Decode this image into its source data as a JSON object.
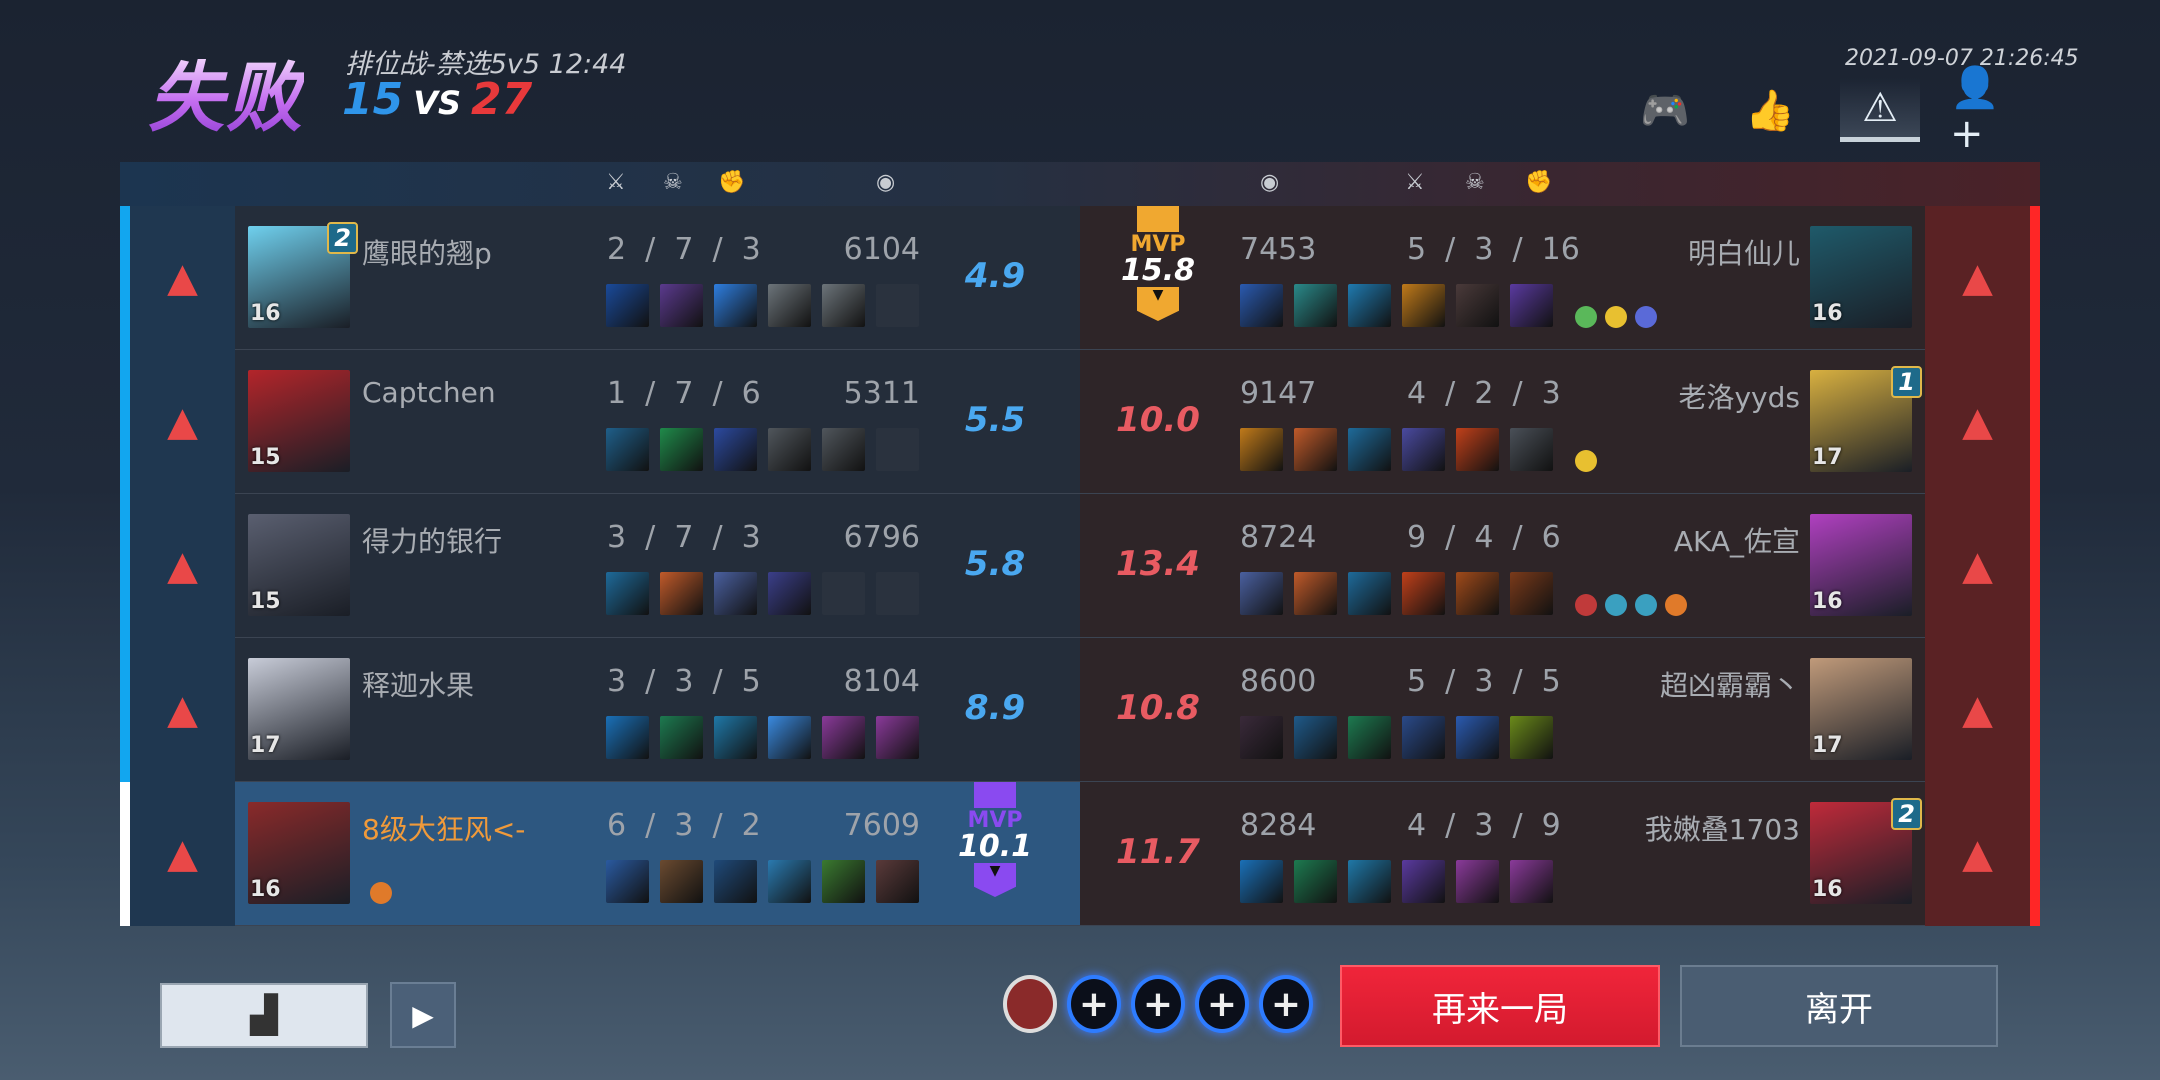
{
  "header": {
    "result": "失败",
    "mode": "排位战-禁选5v5",
    "duration": "12:44",
    "score_blue": "15",
    "vs": "VS",
    "score_red": "27",
    "datetime": "2021-09-07 21:26:45"
  },
  "tabs": [
    {
      "icon": "gamepad-icon",
      "glyph": "🎮"
    },
    {
      "icon": "thumbs-up-icon",
      "glyph": "👍"
    },
    {
      "icon": "warning-icon",
      "glyph": "⚠",
      "active": true
    },
    {
      "icon": "add-friend-icon",
      "glyph": "👤+"
    }
  ],
  "columns": {
    "kills": "⚔",
    "deaths": "☠",
    "assists": "✊",
    "gold": "◉"
  },
  "blue_team": [
    {
      "name": "鹰眼的翘p",
      "level": "16",
      "rank": "2",
      "kda": "2  /  7  /  3",
      "gold": "6104",
      "score": "4.9",
      "mvp": false,
      "avatar": "#6fd0ee",
      "items": [
        "#1a4a9a",
        "#5b3a8e",
        "#2e7ee0",
        "#6c747a",
        "#6c747a",
        ""
      ],
      "badges": []
    },
    {
      "name": "Captchen",
      "level": "15",
      "rank": "",
      "kda": "1  /  7  /  6",
      "gold": "5311",
      "score": "5.5",
      "mvp": false,
      "avatar": "#b3252a",
      "items": [
        "#1f5f8a",
        "#1f8a4a",
        "#2c4aa0",
        "#50565c",
        "#50565c",
        ""
      ],
      "badges": []
    },
    {
      "name": "得力的银行",
      "level": "15",
      "rank": "",
      "kda": "3  /  7  /  3",
      "gold": "6796",
      "score": "5.8",
      "mvp": false,
      "avatar": "#5a5f70",
      "items": [
        "#1e6a9a",
        "#c05a2a",
        "#4a60a0",
        "#3b3f8a",
        "",
        ""
      ],
      "badges": []
    },
    {
      "name": "释迦水果",
      "level": "17",
      "rank": "",
      "kda": "3  /  3  /  5",
      "gold": "8104",
      "score": "8.9",
      "mvp": false,
      "avatar": "#c8ccd8",
      "items": [
        "#1a70b8",
        "#1d7a50",
        "#1f78a8",
        "#3a8ae0",
        "#8a3a9a",
        "#8a3a9a"
      ],
      "badges": []
    },
    {
      "name": "8级大狂风<-",
      "level": "16",
      "rank": "",
      "kda": "6  /  3  /  2",
      "gold": "7609",
      "score": "10.1",
      "mvp": true,
      "mvp_label": "MVP",
      "avatar": "#8a2a2a",
      "items": [
        "#2a5aa0",
        "#6a4a30",
        "#1f4a7a",
        "#2a7ab0",
        "#3a7a30",
        "#5a3a3a"
      ],
      "badges": [
        "#e07a2a"
      ],
      "self": true
    }
  ],
  "red_team": [
    {
      "name": "明白仙儿",
      "level": "16",
      "rank": "",
      "kda": "5  /  3  /  16",
      "gold": "7453",
      "score": "15.8",
      "mvp": true,
      "mvp_label": "MVP",
      "avatar": "#1f5a6a",
      "items": [
        "#2a5ab0",
        "#2a8a8a",
        "#1f7ab0",
        "#c07a1a",
        "#4a3a3a",
        "#5a3aa0"
      ],
      "badges": [
        "#5ab85a",
        "#e8c030",
        "#5a6ad8"
      ]
    },
    {
      "name": "老洛yyds",
      "level": "17",
      "rank": "1",
      "kda": "4  /  2  /  3",
      "gold": "9147",
      "score": "10.0",
      "mvp": false,
      "avatar": "#d8b040",
      "items": [
        "#c07a1a",
        "#c05a2a",
        "#1e6a9a",
        "#4a4aa0",
        "#c0401a",
        "#4a5058"
      ],
      "badges": [
        "#e8c030"
      ]
    },
    {
      "name": "AKA_佐宣",
      "level": "16",
      "rank": "",
      "kda": "9  /  4  /  6",
      "gold": "8724",
      "score": "13.4",
      "mvp": false,
      "avatar": "#b040c0",
      "items": [
        "#4a60a0",
        "#c05a2a",
        "#1e6a9a",
        "#c0401a",
        "#a04a1a",
        "#7a3a1a"
      ],
      "badges": [
        "#c03a3a",
        "#3aa0c0",
        "#3aa0c0",
        "#e07a2a"
      ]
    },
    {
      "name": "超凶霸霸丶",
      "level": "17",
      "rank": "",
      "kda": "5  /  3  /  5",
      "gold": "8600",
      "score": "10.8",
      "mvp": false,
      "avatar": "#c09a7a",
      "items": [
        "#3a2a3a",
        "#1f5a8a",
        "#1d7a50",
        "#2a4a8a",
        "#2a5ab0",
        "#6a8a1a"
      ],
      "badges": []
    },
    {
      "name": "我嫩叠1703",
      "level": "16",
      "rank": "2",
      "kda": "4  /  3  /  9",
      "gold": "8284",
      "score": "11.7",
      "mvp": false,
      "avatar": "#c02a3a",
      "items": [
        "#1a70b8",
        "#1d7a50",
        "#1f78a8",
        "#5a3aa0",
        "#8a3a9a",
        "#8a3a9a"
      ],
      "badges": []
    }
  ],
  "colors": {
    "blue": "#2f95ea",
    "red": "#e8393b",
    "mvp_blue": "#8a4af0",
    "mvp_red": "#f0a830"
  },
  "footer": {
    "stats_icon": "bar-chart-icon",
    "video_icon": "video-icon",
    "slot_plus": "+",
    "again": "再来一局",
    "leave": "离开"
  }
}
